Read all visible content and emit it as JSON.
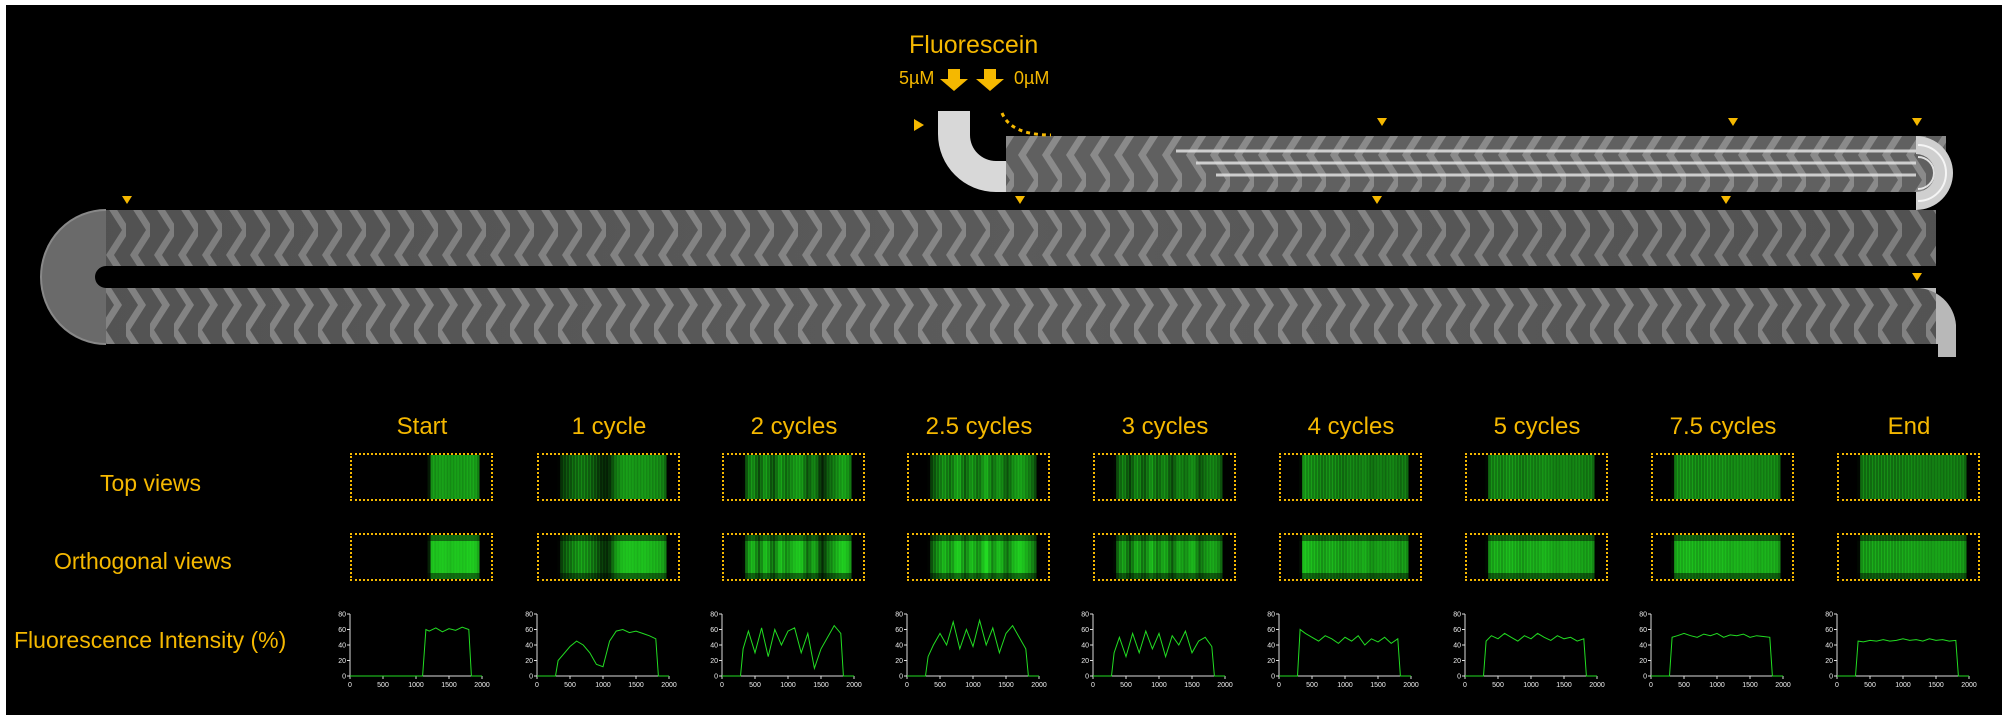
{
  "header": {
    "title": "Fluorescein",
    "inlet_left": "5µM",
    "inlet_right": "0µM"
  },
  "columns": [
    "Start",
    "1 cycle",
    "2 cycles",
    "2.5 cycles",
    "3 cycles",
    "4 cycles",
    "5 cycles",
    "7.5 cycles",
    "End"
  ],
  "rows": {
    "top": "Top views",
    "orthogonal": "Orthogonal views",
    "intensity": "Fluorescence Intensity (%)"
  },
  "plot_axis": {
    "x_ticks": [
      "0",
      "500",
      "1000",
      "1500",
      "2000"
    ],
    "y_ticks": [
      "0",
      "20",
      "40",
      "60",
      "80"
    ],
    "xlim": [
      0,
      2000
    ],
    "ylim": [
      0,
      80
    ]
  },
  "colors": {
    "accent": "#f5b800",
    "fluorescence": "#22dd22",
    "background": "#000000"
  },
  "chart_data": [
    {
      "type": "line",
      "title": "Start",
      "x": [
        0,
        1100,
        1150,
        1200,
        1300,
        1400,
        1500,
        1600,
        1700,
        1800,
        1840,
        2000
      ],
      "y": [
        0,
        0,
        60,
        58,
        62,
        57,
        61,
        59,
        63,
        60,
        0,
        0
      ]
    },
    {
      "type": "line",
      "title": "1 cycle",
      "x": [
        0,
        280,
        320,
        400,
        500,
        600,
        700,
        800,
        900,
        1000,
        1100,
        1200,
        1300,
        1400,
        1500,
        1600,
        1700,
        1800,
        1840,
        2000
      ],
      "y": [
        0,
        0,
        20,
        28,
        38,
        45,
        40,
        30,
        15,
        12,
        45,
        58,
        60,
        56,
        58,
        55,
        52,
        48,
        0,
        0
      ]
    },
    {
      "type": "line",
      "title": "2 cycles",
      "x": [
        0,
        280,
        320,
        400,
        500,
        600,
        700,
        800,
        900,
        1000,
        1100,
        1200,
        1300,
        1400,
        1500,
        1600,
        1700,
        1800,
        1840,
        2000
      ],
      "y": [
        0,
        0,
        35,
        58,
        30,
        62,
        25,
        60,
        40,
        58,
        62,
        30,
        55,
        10,
        35,
        50,
        65,
        55,
        0,
        0
      ]
    },
    {
      "type": "line",
      "title": "2.5 cycles",
      "x": [
        0,
        280,
        320,
        400,
        500,
        600,
        700,
        800,
        900,
        1000,
        1100,
        1200,
        1300,
        1400,
        1500,
        1600,
        1700,
        1800,
        1840,
        2000
      ],
      "y": [
        0,
        0,
        25,
        40,
        55,
        40,
        70,
        35,
        60,
        38,
        72,
        40,
        62,
        30,
        55,
        65,
        50,
        35,
        0,
        0
      ]
    },
    {
      "type": "line",
      "title": "3 cycles",
      "x": [
        0,
        280,
        320,
        400,
        500,
        600,
        700,
        800,
        900,
        1000,
        1100,
        1200,
        1300,
        1400,
        1500,
        1600,
        1700,
        1800,
        1840,
        2000
      ],
      "y": [
        0,
        0,
        30,
        50,
        25,
        55,
        30,
        58,
        35,
        55,
        25,
        52,
        40,
        58,
        30,
        45,
        50,
        38,
        0,
        0
      ]
    },
    {
      "type": "line",
      "title": "4 cycles",
      "x": [
        0,
        280,
        320,
        400,
        500,
        600,
        700,
        800,
        900,
        1000,
        1100,
        1200,
        1300,
        1400,
        1500,
        1600,
        1700,
        1800,
        1840,
        2000
      ],
      "y": [
        0,
        0,
        60,
        55,
        50,
        45,
        52,
        48,
        42,
        50,
        45,
        52,
        40,
        48,
        44,
        50,
        42,
        48,
        0,
        0
      ]
    },
    {
      "type": "line",
      "title": "5 cycles",
      "x": [
        0,
        280,
        320,
        400,
        500,
        600,
        700,
        800,
        900,
        1000,
        1100,
        1200,
        1300,
        1400,
        1500,
        1600,
        1700,
        1800,
        1840,
        2000
      ],
      "y": [
        0,
        0,
        45,
        52,
        48,
        55,
        50,
        45,
        52,
        48,
        55,
        50,
        46,
        52,
        48,
        50,
        45,
        48,
        0,
        0
      ]
    },
    {
      "type": "line",
      "title": "7.5 cycles",
      "x": [
        0,
        280,
        320,
        400,
        500,
        600,
        700,
        800,
        900,
        1000,
        1100,
        1200,
        1300,
        1400,
        1500,
        1600,
        1700,
        1800,
        1840,
        2000
      ],
      "y": [
        0,
        0,
        50,
        52,
        55,
        52,
        50,
        54,
        52,
        55,
        50,
        53,
        52,
        54,
        50,
        52,
        51,
        50,
        0,
        0
      ]
    },
    {
      "type": "line",
      "title": "End",
      "x": [
        0,
        280,
        320,
        400,
        500,
        600,
        700,
        800,
        900,
        1000,
        1100,
        1200,
        1300,
        1400,
        1500,
        1600,
        1700,
        1800,
        1840,
        2000
      ],
      "y": [
        0,
        0,
        45,
        44,
        46,
        45,
        47,
        45,
        46,
        48,
        46,
        47,
        45,
        48,
        46,
        47,
        45,
        46,
        0,
        0
      ]
    }
  ]
}
